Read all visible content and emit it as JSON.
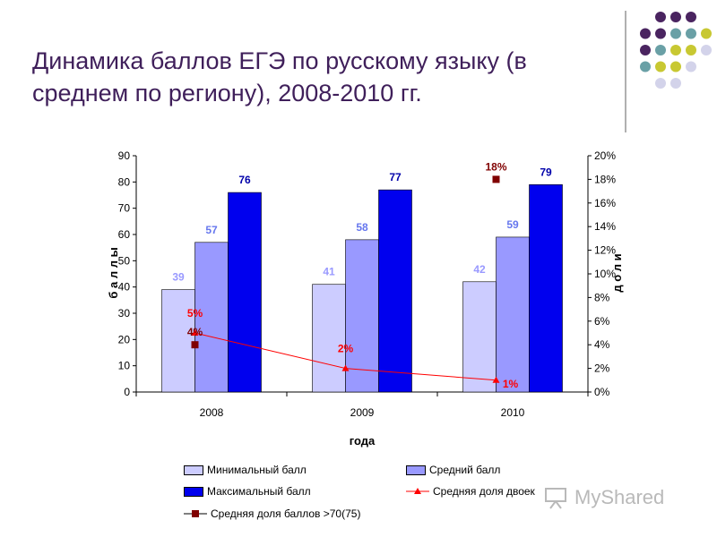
{
  "slide": {
    "title": "Динамика баллов ЕГЭ по русскому языку (в среднем по региону), 2008-2010 гг."
  },
  "watermark": {
    "text": "MyShared",
    "icon": "projector-icon"
  },
  "decor": {
    "dot_colors": [
      "#4a2460",
      "#6aa0a6",
      "#c8c832",
      "#d3d3ea"
    ]
  },
  "chart_data": {
    "type": "bar",
    "title": "",
    "xlabel": "года",
    "ylabel": "б а л л ы",
    "y2label": "д о л и",
    "categories": [
      "2008",
      "2009",
      "2010"
    ],
    "ylim": [
      0,
      90
    ],
    "yticks": [
      "0",
      "10",
      "20",
      "30",
      "40",
      "50",
      "60",
      "70",
      "80",
      "90"
    ],
    "y2lim": [
      0,
      20
    ],
    "y2ticks": [
      "0%",
      "2%",
      "4%",
      "6%",
      "8%",
      "10%",
      "12%",
      "14%",
      "16%",
      "18%",
      "20%"
    ],
    "grid": false,
    "legend_position": "bottom",
    "series": [
      {
        "name": "Минимальный балл",
        "type": "bar",
        "axis": "left",
        "color": "#ccccff",
        "label_color": "#9999ff",
        "values": [
          39,
          41,
          42
        ],
        "labels": [
          "39",
          "41",
          "42"
        ]
      },
      {
        "name": "Средний балл",
        "type": "bar",
        "axis": "left",
        "color": "#9999ff",
        "label_color": "#6677ee",
        "values": [
          57,
          58,
          59
        ],
        "labels": [
          "57",
          "58",
          "59"
        ]
      },
      {
        "name": "Максимальный балл",
        "type": "bar",
        "axis": "left",
        "color": "#0000ee",
        "label_color": "#0000aa",
        "values": [
          76,
          77,
          79
        ],
        "labels": [
          "76",
          "77",
          "79"
        ]
      },
      {
        "name": "Средняя доля двоек",
        "type": "line",
        "axis": "right",
        "color": "#ff0000",
        "values": [
          5,
          2,
          1
        ],
        "labels": [
          "5%",
          "2%",
          "1%"
        ]
      },
      {
        "name": "Средняя доля баллов >70(75)",
        "type": "marker",
        "axis": "right",
        "color": "#800000",
        "values": [
          4,
          null,
          18
        ],
        "labels": [
          "4%",
          "",
          "18%"
        ]
      }
    ]
  }
}
